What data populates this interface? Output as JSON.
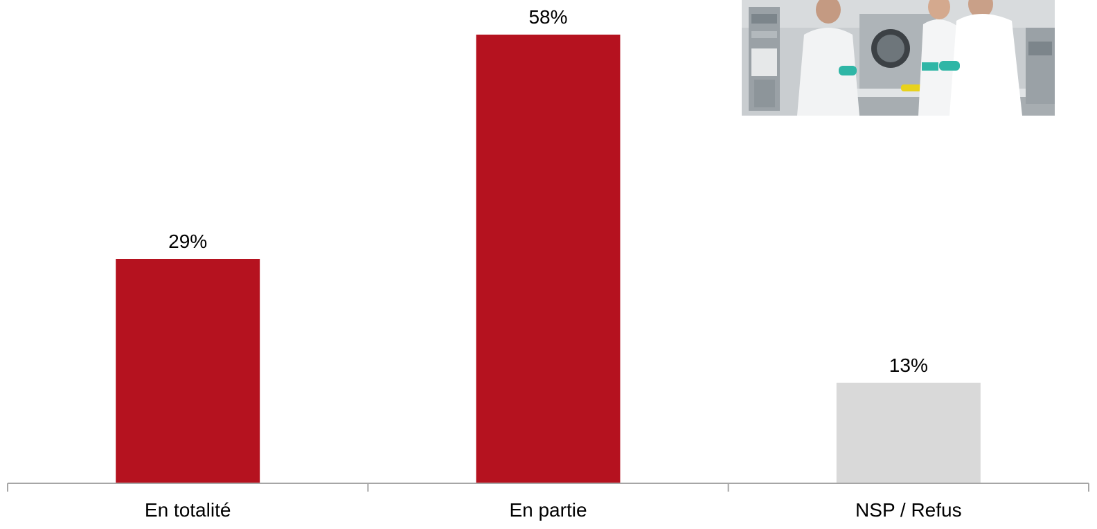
{
  "chart_data": {
    "type": "bar",
    "categories": [
      "En totalité",
      "En partie",
      "NSP / Refus"
    ],
    "values": [
      29,
      58,
      13
    ],
    "value_labels": [
      "29%",
      "58%",
      "13%"
    ],
    "unit": "%",
    "bar_colors": [
      "#b5121f",
      "#b5121f",
      "#d9d9d9"
    ],
    "ylim": [
      0,
      58
    ],
    "grid": false,
    "legend": "none",
    "y_axis_visible": false
  },
  "photo": {
    "subject": "laboratory-scientists-photo"
  },
  "colors": {
    "accent": "#b5121f",
    "neutral": "#d9d9d9",
    "axis": "#a6a6a6"
  }
}
